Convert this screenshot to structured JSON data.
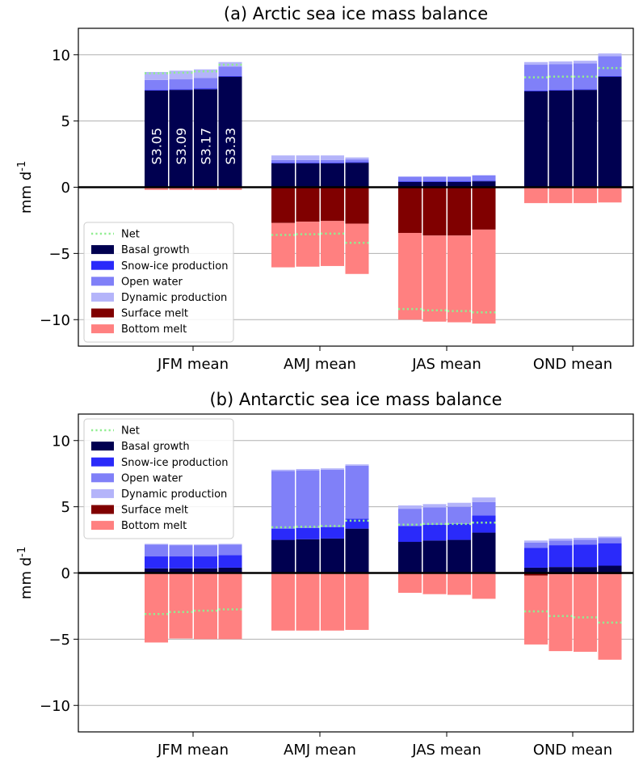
{
  "legend_labels": [
    "Net",
    "Basal growth",
    "Snow-ice production",
    "Open water",
    "Dynamic production",
    "Surface melt",
    "Bottom melt"
  ],
  "ylabel": "mm d-1",
  "categories": [
    "JFM mean",
    "AMJ mean",
    "JAS mean",
    "OND mean"
  ],
  "experiments": [
    "S3.05",
    "S3.09",
    "S3.17",
    "S3.33"
  ],
  "colors": {
    "net": "#90ee90",
    "basal_growth": "#000050",
    "snow_ice": "#2a2afa",
    "open_water": "#8080f8",
    "dynamic": "#b4b4fa",
    "surface_melt": "#800000",
    "bottom_melt": "#ff8080",
    "grid": "#b0b0b0",
    "zero_line": "#000000"
  },
  "chart_data": [
    {
      "type": "bar",
      "title": "(a) Arctic sea ice mass balance",
      "xlabel": "",
      "ylabel": "mm d-1",
      "ylim": [
        -12,
        12
      ],
      "yticks": [
        -10,
        -5,
        0,
        5,
        10
      ],
      "grid": "horizontal",
      "legend_position": "lower-left",
      "bar_labels": [
        "S3.05",
        "S3.09",
        "S3.17",
        "S3.33"
      ],
      "categories": [
        "JFM mean",
        "AMJ mean",
        "JAS mean",
        "OND mean"
      ],
      "bars": [
        [
          {
            "basal_growth": 7.3,
            "snow_ice": 0.05,
            "open_water": 0.75,
            "dynamic": 0.6,
            "surface_melt": 0.0,
            "bottom_melt": -0.2,
            "net": 8.6
          },
          {
            "basal_growth": 7.35,
            "snow_ice": 0.05,
            "open_water": 0.75,
            "dynamic": 0.65,
            "surface_melt": 0.0,
            "bottom_melt": -0.2,
            "net": 8.65
          },
          {
            "basal_growth": 7.4,
            "snow_ice": 0.05,
            "open_water": 0.8,
            "dynamic": 0.65,
            "surface_melt": 0.0,
            "bottom_melt": -0.2,
            "net": 8.75
          },
          {
            "basal_growth": 8.35,
            "snow_ice": 0.05,
            "open_water": 0.7,
            "dynamic": 0.35,
            "surface_melt": 0.0,
            "bottom_melt": -0.2,
            "net": 9.25
          }
        ],
        [
          {
            "basal_growth": 1.8,
            "snow_ice": 0.05,
            "open_water": 0.2,
            "dynamic": 0.35,
            "surface_melt": -2.7,
            "bottom_melt": -3.35,
            "net": -3.6
          },
          {
            "basal_growth": 1.8,
            "snow_ice": 0.05,
            "open_water": 0.2,
            "dynamic": 0.35,
            "surface_melt": -2.6,
            "bottom_melt": -3.4,
            "net": -3.55
          },
          {
            "basal_growth": 1.8,
            "snow_ice": 0.05,
            "open_water": 0.2,
            "dynamic": 0.35,
            "surface_melt": -2.55,
            "bottom_melt": -3.4,
            "net": -3.5
          },
          {
            "basal_growth": 1.85,
            "snow_ice": 0.05,
            "open_water": 0.2,
            "dynamic": 0.15,
            "surface_melt": -2.75,
            "bottom_melt": -3.8,
            "net": -4.2
          }
        ],
        [
          {
            "basal_growth": 0.4,
            "snow_ice": 0.05,
            "open_water": 0.35,
            "dynamic": 0.0,
            "surface_melt": -3.45,
            "bottom_melt": -6.55,
            "net": -9.2
          },
          {
            "basal_growth": 0.4,
            "snow_ice": 0.05,
            "open_water": 0.35,
            "dynamic": 0.0,
            "surface_melt": -3.65,
            "bottom_melt": -6.5,
            "net": -9.3
          },
          {
            "basal_growth": 0.4,
            "snow_ice": 0.05,
            "open_water": 0.35,
            "dynamic": 0.0,
            "surface_melt": -3.65,
            "bottom_melt": -6.55,
            "net": -9.35
          },
          {
            "basal_growth": 0.45,
            "snow_ice": 0.05,
            "open_water": 0.4,
            "dynamic": 0.0,
            "surface_melt": -3.2,
            "bottom_melt": -7.1,
            "net": -9.45
          }
        ],
        [
          {
            "basal_growth": 7.25,
            "snow_ice": 0.05,
            "open_water": 1.95,
            "dynamic": 0.2,
            "surface_melt": 0.0,
            "bottom_melt": -1.2,
            "net": 8.3
          },
          {
            "basal_growth": 7.3,
            "snow_ice": 0.05,
            "open_water": 1.95,
            "dynamic": 0.2,
            "surface_melt": 0.0,
            "bottom_melt": -1.2,
            "net": 8.35
          },
          {
            "basal_growth": 7.35,
            "snow_ice": 0.05,
            "open_water": 1.95,
            "dynamic": 0.2,
            "surface_melt": 0.0,
            "bottom_melt": -1.2,
            "net": 8.35
          },
          {
            "basal_growth": 8.35,
            "snow_ice": 0.05,
            "open_water": 1.5,
            "dynamic": 0.2,
            "surface_melt": 0.0,
            "bottom_melt": -1.15,
            "net": 9.0
          }
        ]
      ]
    },
    {
      "type": "bar",
      "title": "(b) Antarctic sea ice mass balance",
      "xlabel": "",
      "ylabel": "mm d-1",
      "ylim": [
        -12,
        12
      ],
      "yticks": [
        -10,
        -5,
        0,
        5,
        10
      ],
      "grid": "horizontal",
      "legend_position": "upper-left",
      "categories": [
        "JFM mean",
        "AMJ mean",
        "JAS mean",
        "OND mean"
      ],
      "bars": [
        [
          {
            "basal_growth": 0.35,
            "snow_ice": 0.9,
            "open_water": 0.9,
            "dynamic": 0.05,
            "surface_melt": 0.0,
            "bottom_melt": -5.25,
            "net": -3.1
          },
          {
            "basal_growth": 0.35,
            "snow_ice": 0.9,
            "open_water": 0.85,
            "dynamic": 0.05,
            "surface_melt": 0.0,
            "bottom_melt": -4.95,
            "net": -2.95
          },
          {
            "basal_growth": 0.35,
            "snow_ice": 0.9,
            "open_water": 0.85,
            "dynamic": 0.05,
            "surface_melt": 0.0,
            "bottom_melt": -5.0,
            "net": -2.85
          },
          {
            "basal_growth": 0.4,
            "snow_ice": 0.95,
            "open_water": 0.8,
            "dynamic": 0.05,
            "surface_melt": 0.0,
            "bottom_melt": -5.0,
            "net": -2.75
          }
        ],
        [
          {
            "basal_growth": 2.5,
            "snow_ice": 0.85,
            "open_water": 4.35,
            "dynamic": 0.1,
            "surface_melt": 0.0,
            "bottom_melt": -4.35,
            "net": 3.45
          },
          {
            "basal_growth": 2.55,
            "snow_ice": 0.85,
            "open_water": 4.35,
            "dynamic": 0.1,
            "surface_melt": 0.0,
            "bottom_melt": -4.35,
            "net": 3.5
          },
          {
            "basal_growth": 2.6,
            "snow_ice": 0.85,
            "open_water": 4.35,
            "dynamic": 0.1,
            "surface_melt": 0.0,
            "bottom_melt": -4.35,
            "net": 3.55
          },
          {
            "basal_growth": 3.35,
            "snow_ice": 0.75,
            "open_water": 4.0,
            "dynamic": 0.1,
            "surface_melt": 0.0,
            "bottom_melt": -4.3,
            "net": 3.95
          }
        ],
        [
          {
            "basal_growth": 2.35,
            "snow_ice": 1.2,
            "open_water": 1.3,
            "dynamic": 0.25,
            "surface_melt": 0.0,
            "bottom_melt": -1.5,
            "net": 3.65
          },
          {
            "basal_growth": 2.45,
            "snow_ice": 1.2,
            "open_water": 1.3,
            "dynamic": 0.25,
            "surface_melt": 0.0,
            "bottom_melt": -1.6,
            "net": 3.7
          },
          {
            "basal_growth": 2.5,
            "snow_ice": 1.2,
            "open_water": 1.3,
            "dynamic": 0.3,
            "surface_melt": 0.0,
            "bottom_melt": -1.65,
            "net": 3.7
          },
          {
            "basal_growth": 3.05,
            "snow_ice": 1.3,
            "open_water": 1.0,
            "dynamic": 0.35,
            "surface_melt": 0.0,
            "bottom_melt": -1.95,
            "net": 3.8
          }
        ],
        [
          {
            "basal_growth": 0.4,
            "snow_ice": 1.5,
            "open_water": 0.4,
            "dynamic": 0.15,
            "surface_melt": -0.2,
            "bottom_melt": -5.2,
            "net": -2.9
          },
          {
            "basal_growth": 0.45,
            "snow_ice": 1.65,
            "open_water": 0.35,
            "dynamic": 0.15,
            "surface_melt": -0.1,
            "bottom_melt": -5.8,
            "net": -3.25
          },
          {
            "basal_growth": 0.45,
            "snow_ice": 1.7,
            "open_water": 0.35,
            "dynamic": 0.15,
            "surface_melt": -0.1,
            "bottom_melt": -5.85,
            "net": -3.35
          },
          {
            "basal_growth": 0.55,
            "snow_ice": 1.7,
            "open_water": 0.4,
            "dynamic": 0.1,
            "surface_melt": -0.1,
            "bottom_melt": -6.45,
            "net": -3.75
          }
        ]
      ]
    }
  ]
}
